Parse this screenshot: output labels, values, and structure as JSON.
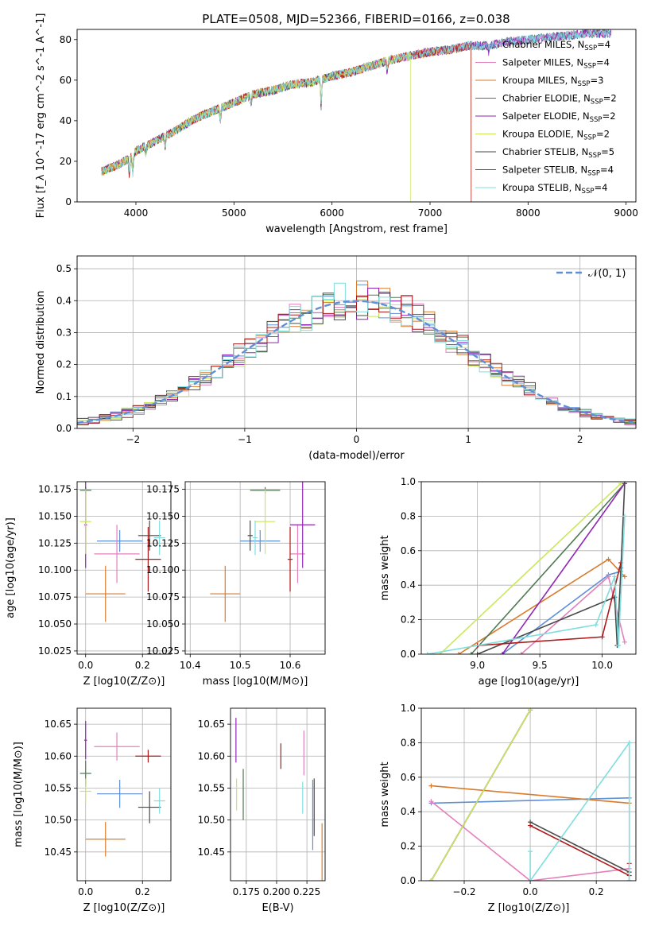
{
  "figure_title": "PLATE=0508, MJD=52366, FIBERID=0166, z=0.038",
  "legend_top": [
    {
      "name": "Chabrier MILES, N",
      "sub": "SSP",
      "suffix": "=4",
      "color": "#5f8fd6"
    },
    {
      "name": "Salpeter MILES, N",
      "sub": "SSP",
      "suffix": "=4",
      "color": "#e47fbd"
    },
    {
      "name": "Kroupa MILES, N",
      "sub": "SSP",
      "suffix": "=3",
      "color": "#d97b2b"
    },
    {
      "name": "Chabrier ELODIE, N",
      "sub": "SSP",
      "suffix": "=2",
      "color": "#4f7a52"
    },
    {
      "name": "Salpeter ELODIE, N",
      "sub": "SSP",
      "suffix": "=2",
      "color": "#9024b5"
    },
    {
      "name": "Kroupa ELODIE, N",
      "sub": "SSP",
      "suffix": "=2",
      "color": "#c9e85a"
    },
    {
      "name": "Chabrier STELIB, N",
      "sub": "SSP",
      "suffix": "=5",
      "color": "#4a4a4a"
    },
    {
      "name": "Salpeter STELIB, N",
      "sub": "SSP",
      "suffix": "=4",
      "color": "#b01a1a"
    },
    {
      "name": "Kroupa STELIB, N",
      "sub": "SSP",
      "suffix": "=4",
      "color": "#7fdede"
    }
  ],
  "legend_hist": "𝒩(0, 1)",
  "chart_data": [
    {
      "id": "spectrum",
      "type": "line",
      "xlabel": "wavelength [Angstrom, rest frame]",
      "ylabel": "Flux [f_λ 10^-17 erg cm^-2 s^-1 A^-1]",
      "xlim": [
        3400,
        9100
      ],
      "ylim": [
        0,
        85
      ],
      "xticks": [
        "4000",
        "5000",
        "6000",
        "7000",
        "8000",
        "9000"
      ],
      "yticks": [
        "0",
        "20",
        "40",
        "60",
        "80"
      ],
      "anchors": [
        [
          3650,
          15
        ],
        [
          3800,
          18
        ],
        [
          3950,
          22
        ],
        [
          4000,
          25
        ],
        [
          4200,
          30
        ],
        [
          4400,
          35
        ],
        [
          4600,
          41
        ],
        [
          4800,
          45
        ],
        [
          5000,
          49
        ],
        [
          5200,
          53
        ],
        [
          5400,
          55
        ],
        [
          5600,
          58
        ],
        [
          5800,
          59
        ],
        [
          6000,
          62
        ],
        [
          6200,
          64
        ],
        [
          6400,
          67
        ],
        [
          6600,
          70
        ],
        [
          6800,
          72
        ],
        [
          7000,
          74
        ],
        [
          7200,
          75
        ],
        [
          7400,
          77
        ],
        [
          7600,
          77
        ],
        [
          7800,
          79
        ],
        [
          8000,
          80
        ],
        [
          8200,
          81
        ],
        [
          8400,
          82
        ],
        [
          8600,
          83
        ],
        [
          8800,
          83
        ]
      ],
      "absorption": [
        [
          3933,
          -8
        ],
        [
          3968,
          -9
        ],
        [
          4102,
          -4
        ],
        [
          4300,
          -5
        ],
        [
          4861,
          -6
        ],
        [
          5175,
          -4
        ],
        [
          5890,
          -14
        ],
        [
          6563,
          -5
        ],
        [
          7600,
          -3
        ]
      ],
      "cutoffs": [
        {
          "color": "#d97b2b",
          "x": 7420
        },
        {
          "color": "#c9e85a",
          "x": 6800
        },
        {
          "color": "#b01a1a",
          "x": 7420
        }
      ],
      "grid": false,
      "legend": "top-right"
    },
    {
      "id": "residual_hist",
      "type": "line",
      "xlabel": "(data-model)/error",
      "ylabel": "Normed distribution",
      "xlim": [
        -2.5,
        2.5
      ],
      "ylim": [
        0,
        0.54
      ],
      "xticks": [
        "−2",
        "−1",
        "0",
        "1",
        "2"
      ],
      "yticks": [
        "0.0",
        "0.1",
        "0.2",
        "0.3",
        "0.4",
        "0.5"
      ],
      "bin_width": 0.1,
      "grid": true,
      "legend": "top-right"
    },
    {
      "id": "Z_vs_age",
      "type": "scatter",
      "xlabel": "Z [log10(Z/Z⊙)]",
      "ylabel": "age  [log10(age/yr)]",
      "xlim": [
        -0.03,
        0.3
      ],
      "ylim": [
        10.022,
        10.182
      ],
      "xticks": [
        "0.0",
        "0.2"
      ],
      "yticks": [
        "10.025",
        "10.050",
        "10.075",
        "10.100",
        "10.125",
        "10.150",
        "10.175"
      ],
      "points": [
        {
          "c": 0,
          "x": 0.12,
          "y": 10.127,
          "ex": 0.08,
          "ey": 0.01
        },
        {
          "c": 1,
          "x": 0.11,
          "y": 10.115,
          "ex": 0.08,
          "ey": 0.027
        },
        {
          "c": 2,
          "x": 0.07,
          "y": 10.078,
          "ex": 0.07,
          "ey": 0.026
        },
        {
          "c": 3,
          "x": 0.0,
          "y": 10.174,
          "ex": 0.02,
          "ey": 0.003
        },
        {
          "c": 4,
          "x": 0.0,
          "y": 10.142,
          "ex": 0.005,
          "ey": 0.04
        },
        {
          "c": 5,
          "x": 0.0,
          "y": 10.145,
          "ex": 0.02,
          "ey": 0.03
        },
        {
          "c": 6,
          "x": 0.225,
          "y": 10.132,
          "ex": 0.04,
          "ey": 0.014
        },
        {
          "c": 7,
          "x": 0.22,
          "y": 10.11,
          "ex": 0.045,
          "ey": 0.03
        },
        {
          "c": 8,
          "x": 0.26,
          "y": 10.13,
          "ex": 0.02,
          "ey": 0.016
        }
      ],
      "grid": true
    },
    {
      "id": "mass_vs_age",
      "type": "scatter",
      "xlabel": "mass [log10(M/M⊙)]",
      "ylabel": "",
      "xlim": [
        10.39,
        10.67
      ],
      "ylim": [
        10.022,
        10.182
      ],
      "xticks": [
        "10.4",
        "10.5",
        "10.6"
      ],
      "yticks": [
        "10.025",
        "10.050",
        "10.075",
        "10.100",
        "10.125",
        "10.150",
        "10.175"
      ],
      "points": [
        {
          "c": 0,
          "x": 10.54,
          "y": 10.127,
          "ex": 0.04,
          "ey": 0.01
        },
        {
          "c": 1,
          "x": 10.615,
          "y": 10.115,
          "ex": 0.015,
          "ey": 0.027
        },
        {
          "c": 2,
          "x": 10.47,
          "y": 10.078,
          "ex": 0.03,
          "ey": 0.026
        },
        {
          "c": 3,
          "x": 10.55,
          "y": 10.174,
          "ex": 0.03,
          "ey": 0.003
        },
        {
          "c": 4,
          "x": 10.625,
          "y": 10.142,
          "ex": 0.025,
          "ey": 0.04
        },
        {
          "c": 5,
          "x": 10.55,
          "y": 10.145,
          "ex": 0.02,
          "ey": 0.03
        },
        {
          "c": 6,
          "x": 10.52,
          "y": 10.132,
          "ex": 0.005,
          "ey": 0.014
        },
        {
          "c": 7,
          "x": 10.6,
          "y": 10.11,
          "ex": 0.005,
          "ey": 0.03
        },
        {
          "c": 8,
          "x": 10.53,
          "y": 10.13,
          "ex": 0.005,
          "ey": 0.016
        }
      ],
      "grid": true
    },
    {
      "id": "age_vs_weight",
      "type": "line",
      "xlabel": "age  [log10(age/yr)]",
      "ylabel": "mass weight",
      "xlim": [
        8.55,
        10.27
      ],
      "ylim": [
        0,
        1.0
      ],
      "xticks": [
        "9.0",
        "9.5",
        "10.0"
      ],
      "yticks": [
        "0.0",
        "0.2",
        "0.4",
        "0.6",
        "0.8",
        "1.0"
      ],
      "series": [
        {
          "c": 0,
          "pts": [
            [
              9.2,
              0.0
            ],
            [
              10.05,
              0.46
            ],
            [
              10.15,
              0.48
            ]
          ]
        },
        {
          "c": 1,
          "pts": [
            [
              9.35,
              0.0
            ],
            [
              10.05,
              0.45
            ],
            [
              10.18,
              0.07
            ]
          ]
        },
        {
          "c": 2,
          "pts": [
            [
              8.85,
              0.0
            ],
            [
              10.05,
              0.55
            ],
            [
              10.18,
              0.45
            ]
          ]
        },
        {
          "c": 3,
          "pts": [
            [
              8.95,
              0.0
            ],
            [
              10.18,
              0.99
            ]
          ]
        },
        {
          "c": 4,
          "pts": [
            [
              9.2,
              0.0
            ],
            [
              10.18,
              0.99
            ]
          ]
        },
        {
          "c": 5,
          "pts": [
            [
              8.7,
              0.0
            ],
            [
              10.15,
              0.99
            ]
          ]
        },
        {
          "c": 6,
          "pts": [
            [
              9.0,
              0.0
            ],
            [
              10.1,
              0.33
            ],
            [
              10.12,
              0.05
            ],
            [
              10.15,
              0.5
            ],
            [
              10.18,
              0.99
            ]
          ]
        },
        {
          "c": 7,
          "pts": [
            [
              9.0,
              0.05
            ],
            [
              10.0,
              0.1
            ],
            [
              10.15,
              0.53
            ]
          ]
        },
        {
          "c": 8,
          "pts": [
            [
              8.6,
              0.0
            ],
            [
              9.95,
              0.17
            ],
            [
              10.1,
              0.45
            ],
            [
              10.13,
              0.05
            ],
            [
              10.18,
              0.8
            ]
          ]
        }
      ],
      "grid": true
    },
    {
      "id": "Z_vs_mass",
      "type": "scatter",
      "xlabel": "Z [log10(Z/Z⊙)]",
      "ylabel": "mass [log10(M/M⊙)]",
      "xlim": [
        -0.03,
        0.3
      ],
      "ylim": [
        10.405,
        10.675
      ],
      "xticks": [
        "0.0",
        "0.2"
      ],
      "yticks": [
        "10.45",
        "10.50",
        "10.55",
        "10.60",
        "10.65"
      ],
      "points": [
        {
          "c": 0,
          "x": 0.12,
          "y": 10.541,
          "ex": 0.08,
          "ey": 0.022
        },
        {
          "c": 1,
          "x": 0.11,
          "y": 10.615,
          "ex": 0.08,
          "ey": 0.022
        },
        {
          "c": 2,
          "x": 0.07,
          "y": 10.47,
          "ex": 0.07,
          "ey": 0.027
        },
        {
          "c": 3,
          "x": 0.0,
          "y": 10.573,
          "ex": 0.02,
          "ey": 0.02
        },
        {
          "c": 4,
          "x": 0.0,
          "y": 10.625,
          "ex": 0.005,
          "ey": 0.03
        },
        {
          "c": 5,
          "x": 0.0,
          "y": 10.545,
          "ex": 0.02,
          "ey": 0.02
        },
        {
          "c": 6,
          "x": 0.225,
          "y": 10.52,
          "ex": 0.04,
          "ey": 0.025
        },
        {
          "c": 7,
          "x": 0.22,
          "y": 10.6,
          "ex": 0.045,
          "ey": 0.01
        },
        {
          "c": 8,
          "x": 0.26,
          "y": 10.53,
          "ex": 0.02,
          "ey": 0.02
        }
      ],
      "grid": true
    },
    {
      "id": "ebv_vs_mass",
      "type": "scatter",
      "xlabel": "E(B-V)",
      "ylabel": "",
      "xlim": [
        0.162,
        0.24
      ],
      "ylim": [
        10.405,
        10.675
      ],
      "xticks": [
        "0.175",
        "0.200",
        "0.225"
      ],
      "yticks": [
        "10.45",
        "10.50",
        "10.55",
        "10.60",
        "10.65"
      ],
      "points": [
        {
          "c": 0,
          "x": 0.2298,
          "y": 10.508,
          "ex": 0,
          "ey": 0.055
        },
        {
          "c": 1,
          "x": 0.2225,
          "y": 10.605,
          "ex": 0,
          "ey": 0.035
        },
        {
          "c": 2,
          "x": 0.2375,
          "y": 10.435,
          "ex": 0,
          "ey": 0.06
        },
        {
          "c": 3,
          "x": 0.1725,
          "y": 10.54,
          "ex": 0,
          "ey": 0.04
        },
        {
          "c": 4,
          "x": 0.1665,
          "y": 10.625,
          "ex": 0,
          "ey": 0.035
        },
        {
          "c": 5,
          "x": 0.167,
          "y": 10.54,
          "ex": 0,
          "ey": 0.025
        },
        {
          "c": 6,
          "x": 0.231,
          "y": 10.52,
          "ex": 0,
          "ey": 0.045
        },
        {
          "c": 7,
          "x": 0.2035,
          "y": 10.6,
          "ex": 0,
          "ey": 0.02
        },
        {
          "c": 8,
          "x": 0.2215,
          "y": 10.535,
          "ex": 0,
          "ey": 0.025
        }
      ],
      "grid": true
    },
    {
      "id": "Zmet_vs_weight",
      "type": "line",
      "xlabel": "Z [log10(Z/Z⊙)]",
      "ylabel": "mass weight",
      "xlim": [
        -0.33,
        0.32
      ],
      "ylim": [
        0,
        1.0
      ],
      "xticks": [
        "−0.2",
        "0.0",
        "0.2"
      ],
      "yticks": [
        "0.0",
        "0.2",
        "0.4",
        "0.6",
        "0.8",
        "1.0"
      ],
      "series": [
        {
          "c": 0,
          "pts": [
            [
              -0.3,
              0.45
            ],
            [
              0.3,
              0.48
            ]
          ]
        },
        {
          "c": 1,
          "pts": [
            [
              -0.3,
              0.46
            ],
            [
              0.0,
              0.0
            ],
            [
              0.3,
              0.07
            ]
          ]
        },
        {
          "c": 2,
          "pts": [
            [
              -0.3,
              0.55
            ],
            [
              0.3,
              0.45
            ]
          ]
        },
        {
          "c": 3,
          "pts": [
            [
              -0.3,
              0.0
            ],
            [
              0.0,
              0.99
            ]
          ]
        },
        {
          "c": 4,
          "pts": [
            [
              -0.3,
              0.0
            ],
            [
              0.0,
              0.99
            ]
          ]
        },
        {
          "c": 5,
          "pts": [
            [
              -0.3,
              0.0
            ],
            [
              0.0,
              0.99
            ]
          ]
        },
        {
          "c": 6,
          "pts": [
            [
              0.0,
              0.34
            ],
            [
              0.3,
              0.05
            ],
            [
              0.3,
              0.0
            ]
          ]
        },
        {
          "c": 7,
          "pts": [
            [
              0.0,
              0.32
            ],
            [
              0.3,
              0.03
            ],
            [
              0.3,
              0.1
            ]
          ]
        },
        {
          "c": 8,
          "pts": [
            [
              0.0,
              0.17
            ],
            [
              0.0,
              0.0
            ],
            [
              0.3,
              0.8
            ],
            [
              0.3,
              0.0
            ]
          ]
        }
      ],
      "grid": true
    }
  ]
}
